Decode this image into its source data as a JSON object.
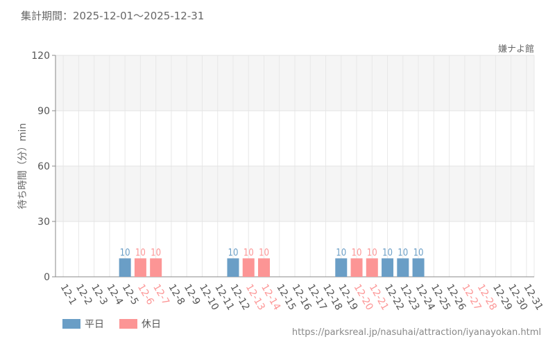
{
  "header": {
    "period": "集計期間：2025-12-01～2025-12-31"
  },
  "attraction_name": "嫌ナよ館",
  "legend": {
    "weekday": "平日",
    "holiday": "休日"
  },
  "source_url": "https://parksreal.jp/nasuhai/attraction/iyanayokan.html",
  "colors": {
    "weekday": "#6a9ec6",
    "holiday": "#fc9595",
    "band": "#f5f5f5"
  },
  "chart_data": {
    "type": "bar",
    "title": "",
    "ylabel": "待ち時間（分）min",
    "xlabel": "",
    "ylim": [
      0,
      120
    ],
    "yticks": [
      0,
      30,
      60,
      90,
      120
    ],
    "grid": true,
    "legend_position": "bottom-left",
    "categories": [
      "12-1",
      "12-2",
      "12-3",
      "12-4",
      "12-5",
      "12-6",
      "12-7",
      "12-8",
      "12-9",
      "12-10",
      "12-11",
      "12-12",
      "12-13",
      "12-14",
      "12-15",
      "12-16",
      "12-17",
      "12-18",
      "12-19",
      "12-20",
      "12-21",
      "12-22",
      "12-23",
      "12-24",
      "12-25",
      "12-26",
      "12-27",
      "12-28",
      "12-29",
      "12-30",
      "12-31"
    ],
    "day_type": [
      "weekday",
      "weekday",
      "weekday",
      "weekday",
      "weekday",
      "holiday",
      "holiday",
      "weekday",
      "weekday",
      "weekday",
      "weekday",
      "weekday",
      "holiday",
      "holiday",
      "weekday",
      "weekday",
      "weekday",
      "weekday",
      "weekday",
      "holiday",
      "holiday",
      "weekday",
      "weekday",
      "weekday",
      "weekday",
      "weekday",
      "holiday",
      "holiday",
      "weekday",
      "weekday",
      "weekday"
    ],
    "values": [
      null,
      null,
      null,
      null,
      10,
      10,
      10,
      null,
      null,
      null,
      null,
      10,
      10,
      10,
      null,
      null,
      null,
      null,
      10,
      10,
      10,
      10,
      10,
      10,
      null,
      null,
      null,
      null,
      null,
      null,
      null
    ]
  }
}
